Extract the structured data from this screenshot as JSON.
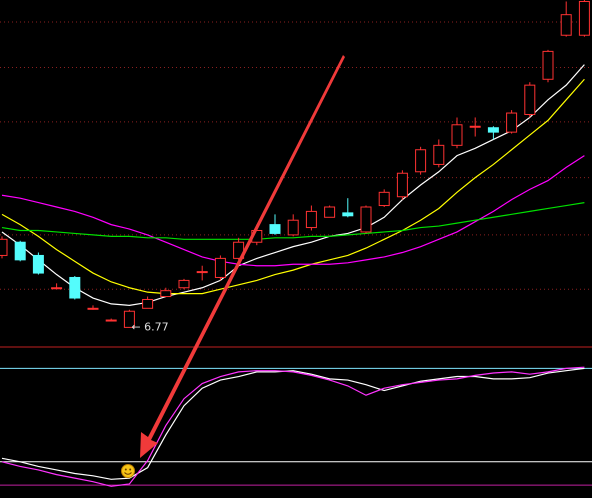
{
  "chart_data": [
    {
      "type": "candlestick",
      "annotation": "← 6.77",
      "annotation_value": 6.77,
      "up_color": "#ff3232",
      "down_color": "#54fcfc",
      "open": [
        7.26,
        7.35,
        7.26,
        7.04,
        7.11,
        6.9,
        6.82,
        6.77,
        6.9,
        6.98,
        7.04,
        7.15,
        7.11,
        7.24,
        7.35,
        7.47,
        7.4,
        7.45,
        7.52,
        7.55,
        7.42,
        7.6,
        7.66,
        7.83,
        7.88,
        8.01,
        8.14,
        8.13,
        8.1,
        8.22,
        8.46,
        8.76,
        8.76
      ],
      "high": [
        7.39,
        7.36,
        7.28,
        7.07,
        7.12,
        6.92,
        6.83,
        6.89,
        6.98,
        7.04,
        7.1,
        7.19,
        7.26,
        7.38,
        7.47,
        7.54,
        7.54,
        7.6,
        7.6,
        7.65,
        7.6,
        7.71,
        7.84,
        8.0,
        8.05,
        8.2,
        8.2,
        8.14,
        8.25,
        8.44,
        8.66,
        8.99,
        9.0
      ],
      "low": [
        7.24,
        7.22,
        7.13,
        7.03,
        6.96,
        6.89,
        6.82,
        6.77,
        6.9,
        6.98,
        7.03,
        7.09,
        7.09,
        7.23,
        7.33,
        7.4,
        7.39,
        7.43,
        7.52,
        7.52,
        7.41,
        7.59,
        7.64,
        7.81,
        7.86,
        7.99,
        8.07,
        8.05,
        8.09,
        8.2,
        8.44,
        8.75,
        8.75
      ],
      "close": [
        7.37,
        7.23,
        7.14,
        7.04,
        6.97,
        6.9,
        6.82,
        6.88,
        6.96,
        7.02,
        7.09,
        7.15,
        7.24,
        7.35,
        7.43,
        7.41,
        7.5,
        7.56,
        7.59,
        7.53,
        7.59,
        7.69,
        7.82,
        7.98,
        8.01,
        8.15,
        8.14,
        8.1,
        8.23,
        8.42,
        8.65,
        8.9,
        8.99
      ],
      "series": [
        {
          "color": "#ffffff",
          "values": [
            7.42,
            7.33,
            7.23,
            7.13,
            7.04,
            6.97,
            6.93,
            6.92,
            6.94,
            6.98,
            7.01,
            7.04,
            7.09,
            7.19,
            7.24,
            7.28,
            7.32,
            7.35,
            7.39,
            7.41,
            7.45,
            7.52,
            7.64,
            7.74,
            7.83,
            7.94,
            7.99,
            8.05,
            8.11,
            8.2,
            8.32,
            8.42,
            8.56
          ]
        },
        {
          "color": "#ffff00",
          "values": [
            7.54,
            7.47,
            7.39,
            7.3,
            7.22,
            7.14,
            7.08,
            7.04,
            7.01,
            7.0,
            7.0,
            7.0,
            7.03,
            7.06,
            7.09,
            7.13,
            7.16,
            7.2,
            7.23,
            7.26,
            7.31,
            7.37,
            7.43,
            7.5,
            7.58,
            7.69,
            7.79,
            7.88,
            7.98,
            8.08,
            8.18,
            8.32,
            8.46
          ]
        },
        {
          "color": "#ff00ff",
          "values": [
            7.67,
            7.65,
            7.62,
            7.59,
            7.56,
            7.52,
            7.47,
            7.44,
            7.4,
            7.35,
            7.3,
            7.25,
            7.22,
            7.2,
            7.19,
            7.19,
            7.2,
            7.2,
            7.2,
            7.21,
            7.23,
            7.25,
            7.28,
            7.32,
            7.37,
            7.42,
            7.49,
            7.56,
            7.64,
            7.71,
            7.77,
            7.86,
            7.94
          ]
        },
        {
          "color": "#00e000",
          "values": [
            7.45,
            7.43,
            7.43,
            7.42,
            7.41,
            7.4,
            7.39,
            7.39,
            7.38,
            7.38,
            7.37,
            7.37,
            7.37,
            7.37,
            7.37,
            7.38,
            7.38,
            7.39,
            7.39,
            7.4,
            7.41,
            7.42,
            7.43,
            7.45,
            7.46,
            7.48,
            7.5,
            7.52,
            7.54,
            7.56,
            7.58,
            7.6,
            7.62
          ]
        }
      ],
      "ylim": [
        6.65,
        9.0
      ],
      "grid_levels": [
        8.85,
        8.54,
        8.17,
        7.79,
        7.4,
        7.03
      ],
      "grid_color": "#8c2020"
    },
    {
      "type": "line",
      "ylim": [
        -11,
        120
      ],
      "hlines": [
        {
          "value": 100,
          "color": "#7fe6ff"
        },
        {
          "value": 20,
          "color": "#ffffff"
        },
        {
          "value": 0,
          "color": "#c020a0"
        }
      ],
      "series": [
        {
          "color": "#ffffff",
          "values": [
            23,
            20,
            16,
            13,
            10,
            8,
            5,
            6,
            15,
            43,
            68,
            83,
            90,
            93,
            97,
            97,
            98,
            95,
            91,
            90,
            86,
            81,
            85,
            89,
            91,
            93,
            93,
            91,
            91,
            92,
            96,
            98,
            100
          ]
        },
        {
          "color": "#ff33ff",
          "values": [
            20,
            16,
            13,
            9,
            6,
            3,
            -1,
            1,
            21,
            51,
            74,
            87,
            93,
            97,
            98,
            98,
            97,
            94,
            90,
            85,
            77,
            83,
            86,
            88,
            90,
            91,
            94,
            96,
            97,
            95,
            97,
            100,
            101
          ]
        }
      ]
    }
  ]
}
